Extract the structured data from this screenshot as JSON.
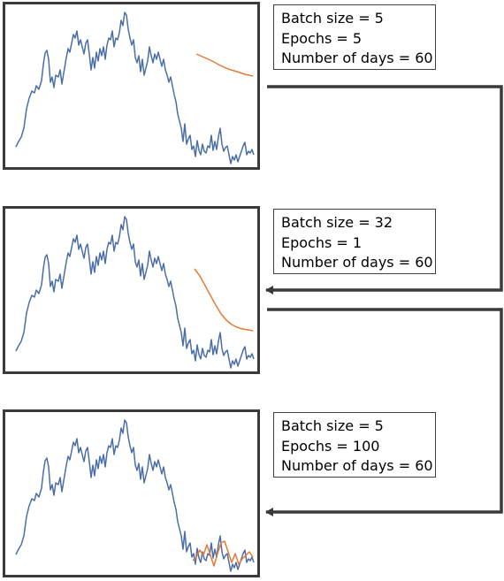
{
  "colors": {
    "series_actual": "#4a6ea9",
    "series_predicted": "#e67a35",
    "frame": "#3a3a3a",
    "arrow": "#3a3a3a"
  },
  "panels": [
    {
      "lines": [
        "Batch size = 5",
        "Epochs = 5",
        "Number of days = 60"
      ],
      "prediction_style": "smooth-slight-decline"
    },
    {
      "lines": [
        "Batch size = 32",
        "Epochs = 1",
        "Number of days = 60"
      ],
      "prediction_style": "smooth-steep-decline"
    },
    {
      "lines": [
        "Batch size = 5",
        "Epochs = 100",
        "Number of days = 60"
      ],
      "prediction_style": "tracks-actual"
    }
  ]
}
